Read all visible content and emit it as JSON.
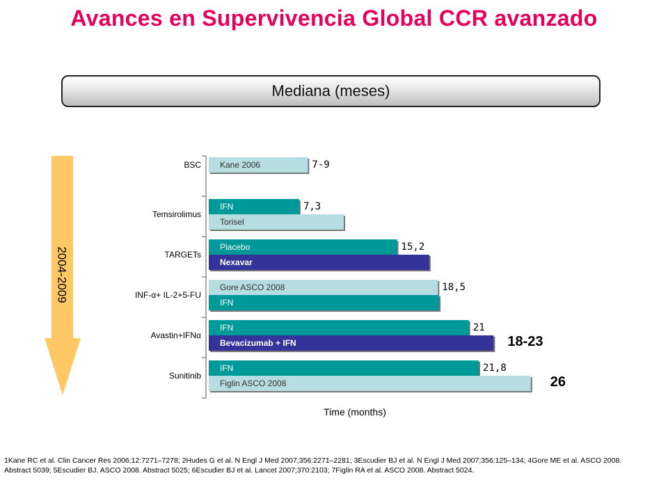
{
  "title": "Avances en Supervivencia Global CCR avanzado",
  "banner": "Mediana (meses)",
  "period_label": "2004-2009",
  "colors": {
    "title": "#e6005c",
    "teal": "#009999",
    "light": "#b6dde2",
    "navy": "#333399",
    "arrow": "#ffc866"
  },
  "chart_data": {
    "type": "bar",
    "orientation": "horizontal",
    "xlabel": "Time (months)",
    "categories": [
      {
        "name": "BSC",
        "bars": [
          {
            "label": "Kane 2006",
            "value": 8,
            "color": "light",
            "value_label": "7-9"
          }
        ]
      },
      {
        "name": "Temsirolimus",
        "bars": [
          {
            "label": "IFN",
            "value": 7.3,
            "color": "teal",
            "value_label": "7,3"
          },
          {
            "label": "Torisel",
            "value": 10.9,
            "color": "light",
            "value_label": ""
          }
        ]
      },
      {
        "name": "TARGETs",
        "bars": [
          {
            "label": "Placebo",
            "value": 15.2,
            "color": "teal",
            "value_label": "15,2"
          },
          {
            "label": "Nexavar",
            "value": 17.8,
            "color": "navy",
            "value_label": ""
          }
        ]
      },
      {
        "name": "INF-α+ IL-2+5-FU",
        "bars": [
          {
            "label": "Gore ASCO 2008",
            "value": 18.5,
            "color": "light",
            "value_label": "18,5"
          },
          {
            "label": "IFN",
            "value": 18.6,
            "color": "teal",
            "value_label": ""
          }
        ]
      },
      {
        "name": "Avastin+IFNα",
        "bars": [
          {
            "label": "IFN",
            "value": 21,
            "color": "teal",
            "value_label": "21"
          },
          {
            "label": "Bevacizumab + IFN",
            "value": 23,
            "color": "navy",
            "value_label": ""
          }
        ],
        "annotation": "18-23"
      },
      {
        "name": "Sunitinib",
        "bars": [
          {
            "label": "IFN",
            "value": 21.8,
            "color": "teal",
            "value_label": "21,8"
          },
          {
            "label": "Figlin ASCO 2008",
            "value": 26,
            "color": "light",
            "value_label": ""
          }
        ],
        "annotation": "26"
      }
    ]
  },
  "references": "1Kane RC et al. Clin Cancer Res 2006;12:7271–7278;  2Hudes G et al. N Engl J Med 2007;356:2271–2281;  3Escudier BJ et al. N Engl J Med 2007;356:125–134;  4Gore ME et al. ASCO 2008.  Abstract 5039; 5Escudier BJ. ASCO 2008. Abstract 5025; 6Escudier BJ et al. Lancet 2007;370:2103; 7Figlin RA et al. ASCO 2008. Abstract 5024."
}
